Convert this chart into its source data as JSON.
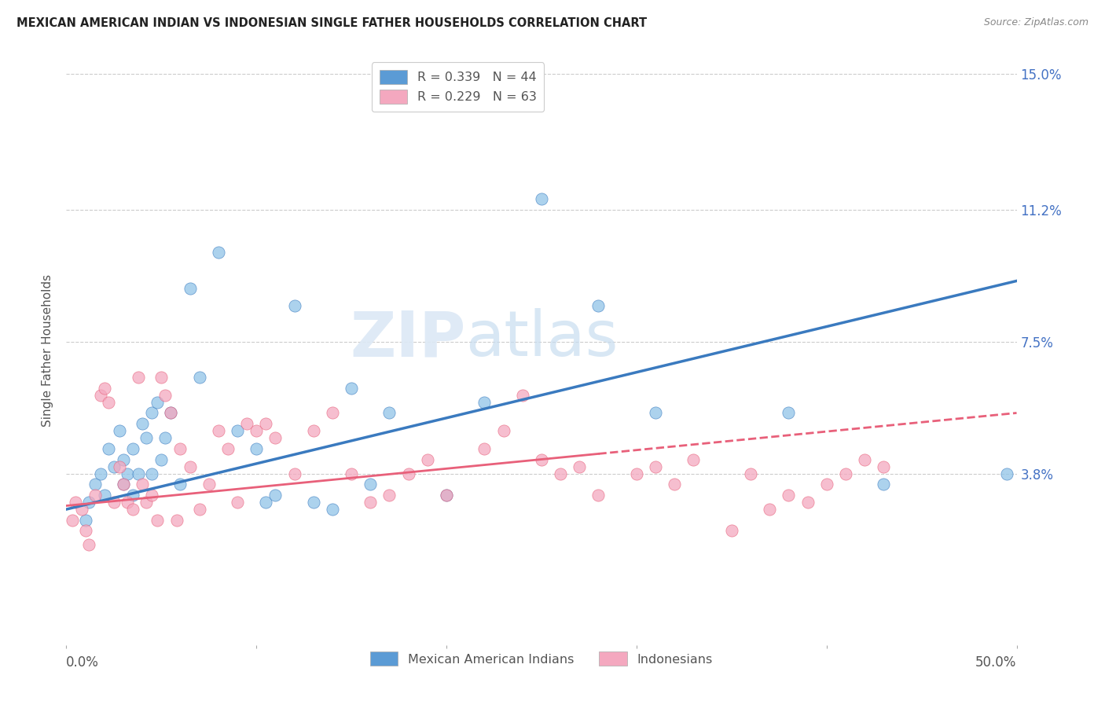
{
  "title": "MEXICAN AMERICAN INDIAN VS INDONESIAN SINGLE FATHER HOUSEHOLDS CORRELATION CHART",
  "source": "Source: ZipAtlas.com",
  "ylabel": "Single Father Households",
  "ytick_labels": [
    "15.0%",
    "11.2%",
    "7.5%",
    "3.8%"
  ],
  "ytick_values": [
    15.0,
    11.2,
    7.5,
    3.8
  ],
  "legend_blue_r": "R = 0.339",
  "legend_blue_n": "N = 44",
  "legend_pink_r": "R = 0.229",
  "legend_pink_n": "N = 63",
  "watermark_zip": "ZIP",
  "watermark_atlas": "atlas",
  "blue_color": "#90c4e8",
  "pink_color": "#f4a8bf",
  "blue_line_color": "#3a7abf",
  "pink_line_color": "#e8607a",
  "blue_legend_color": "#5b9bd5",
  "pink_legend_color": "#f4a8bf",
  "legend_r_color": "#5b9bd5",
  "legend_n_color": "#5b9bd5",
  "blue_x": [
    1.0,
    1.2,
    1.5,
    1.8,
    2.0,
    2.2,
    2.5,
    2.8,
    3.0,
    3.0,
    3.2,
    3.5,
    3.5,
    3.8,
    4.0,
    4.2,
    4.5,
    4.5,
    4.8,
    5.0,
    5.2,
    5.5,
    6.0,
    6.5,
    7.0,
    8.0,
    9.0,
    10.0,
    10.5,
    11.0,
    12.0,
    13.0,
    14.0,
    15.0,
    16.0,
    17.0,
    20.0,
    22.0,
    25.0,
    28.0,
    31.0,
    38.0,
    43.0,
    49.5
  ],
  "blue_y": [
    2.5,
    3.0,
    3.5,
    3.8,
    3.2,
    4.5,
    4.0,
    5.0,
    3.5,
    4.2,
    3.8,
    4.5,
    3.2,
    3.8,
    5.2,
    4.8,
    5.5,
    3.8,
    5.8,
    4.2,
    4.8,
    5.5,
    3.5,
    9.0,
    6.5,
    10.0,
    5.0,
    4.5,
    3.0,
    3.2,
    8.5,
    3.0,
    2.8,
    6.2,
    3.5,
    5.5,
    3.2,
    5.8,
    11.5,
    8.5,
    5.5,
    5.5,
    3.5,
    3.8
  ],
  "pink_x": [
    0.3,
    0.5,
    0.8,
    1.0,
    1.2,
    1.5,
    1.8,
    2.0,
    2.2,
    2.5,
    2.8,
    3.0,
    3.2,
    3.5,
    3.8,
    4.0,
    4.2,
    4.5,
    4.8,
    5.0,
    5.2,
    5.5,
    5.8,
    6.0,
    6.5,
    7.0,
    7.5,
    8.0,
    8.5,
    9.0,
    9.5,
    10.0,
    10.5,
    11.0,
    12.0,
    13.0,
    14.0,
    15.0,
    16.0,
    17.0,
    18.0,
    19.0,
    20.0,
    22.0,
    23.0,
    24.0,
    25.0,
    26.0,
    27.0,
    28.0,
    30.0,
    31.0,
    32.0,
    33.0,
    35.0,
    36.0,
    37.0,
    38.0,
    39.0,
    40.0,
    41.0,
    42.0,
    43.0
  ],
  "pink_y": [
    2.5,
    3.0,
    2.8,
    2.2,
    1.8,
    3.2,
    6.0,
    6.2,
    5.8,
    3.0,
    4.0,
    3.5,
    3.0,
    2.8,
    6.5,
    3.5,
    3.0,
    3.2,
    2.5,
    6.5,
    6.0,
    5.5,
    2.5,
    4.5,
    4.0,
    2.8,
    3.5,
    5.0,
    4.5,
    3.0,
    5.2,
    5.0,
    5.2,
    4.8,
    3.8,
    5.0,
    5.5,
    3.8,
    3.0,
    3.2,
    3.8,
    4.2,
    3.2,
    4.5,
    5.0,
    6.0,
    4.2,
    3.8,
    4.0,
    3.2,
    3.8,
    4.0,
    3.5,
    4.2,
    2.2,
    3.8,
    2.8,
    3.2,
    3.0,
    3.5,
    3.8,
    4.2,
    4.0
  ],
  "xlim": [
    0,
    50
  ],
  "ylim": [
    -1.0,
    15.5
  ],
  "blue_line_start_y": 2.8,
  "blue_line_end_y": 9.2,
  "pink_line_start_y": 2.9,
  "pink_line_end_y": 5.5
}
